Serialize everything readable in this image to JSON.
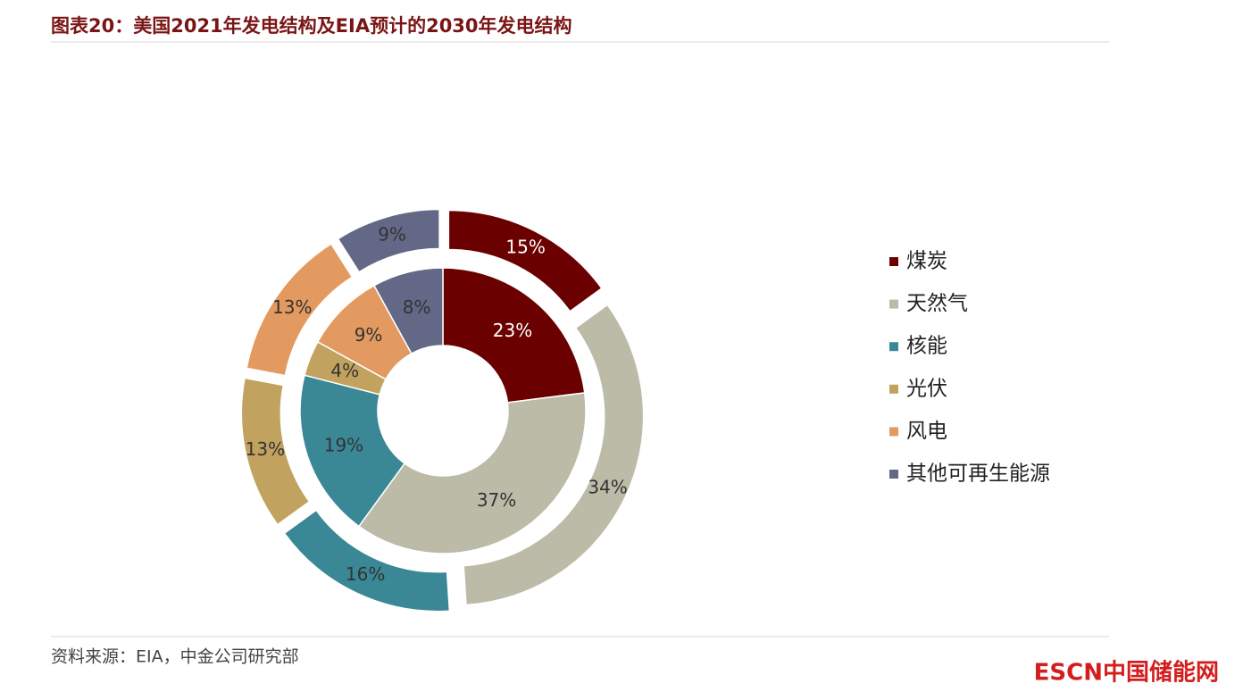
{
  "chart_data": {
    "type": "donut",
    "title": "图表20：美国2021年发电结构及EIA预计的2030年发电结构",
    "categories": [
      "煤炭",
      "天然气",
      "核能",
      "光伏",
      "风电",
      "其他可再生能源"
    ],
    "colors": [
      "#6b0000",
      "#bcbba8",
      "#3a8796",
      "#c1a25f",
      "#e29a60",
      "#636886"
    ],
    "series": [
      {
        "values": [
          23,
          37,
          19,
          4,
          9,
          8
        ],
        "value_labels": [
          "23%",
          "37%",
          "19%",
          "4%",
          "9%",
          "8%"
        ]
      },
      {
        "values": [
          15,
          34,
          16,
          13,
          13,
          9
        ],
        "value_labels": [
          "15%",
          "34%",
          "16%",
          "13%",
          "13%",
          "9%"
        ]
      }
    ],
    "source": "资料来源：EIA，中金公司研究部",
    "watermark": "ESCN中国储能网"
  }
}
